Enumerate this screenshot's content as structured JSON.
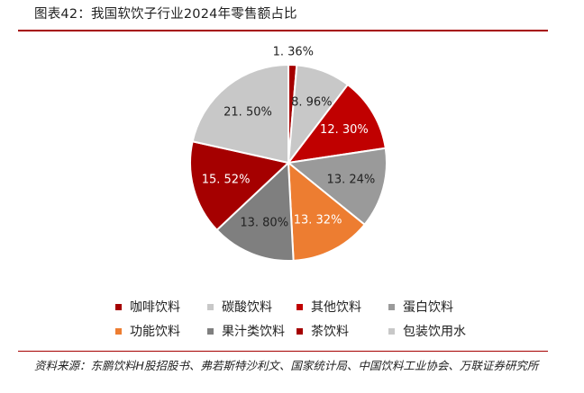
{
  "figure": {
    "title": "图表42：我国软饮子行业2024年零售额占比",
    "source": "资料来源：东鹏饮料H股招股书、弗若斯特沙利文、国家统计局、中国饮料工业协会、万联证券研究所"
  },
  "chart_data": {
    "type": "pie",
    "title": "",
    "unit": "%",
    "slices": [
      {
        "name": "咖啡饮料",
        "value": 1.36,
        "label": "1. 36%",
        "color": "#a50000"
      },
      {
        "name": "碳酸饮料",
        "value": 8.96,
        "label": "8. 96%",
        "color": "#c8c8c8"
      },
      {
        "name": "其他饮料",
        "value": 12.3,
        "label": "12. 30%",
        "color": "#c00000"
      },
      {
        "name": "蛋白饮料",
        "value": 13.24,
        "label": "13. 24%",
        "color": "#9a9a9a"
      },
      {
        "name": "功能饮料",
        "value": 13.32,
        "label": "13. 32%",
        "color": "#ed7d31"
      },
      {
        "name": "果汁类饮料",
        "value": 13.8,
        "label": "13. 80%",
        "color": "#7f7f7f"
      },
      {
        "name": "茶饮料",
        "value": 15.52,
        "label": "15. 52%",
        "color": "#a50000"
      },
      {
        "name": "包装饮用水",
        "value": 21.5,
        "label": "21. 50%",
        "color": "#c8c8c8"
      }
    ],
    "legend": {
      "position": "bottom",
      "rows": [
        [
          "咖啡饮料",
          "碳酸饮料",
          "其他饮料",
          "蛋白饮料"
        ],
        [
          "功能饮料",
          "果汁类饮料",
          "茶饮料",
          "包装饮用水"
        ]
      ]
    }
  }
}
